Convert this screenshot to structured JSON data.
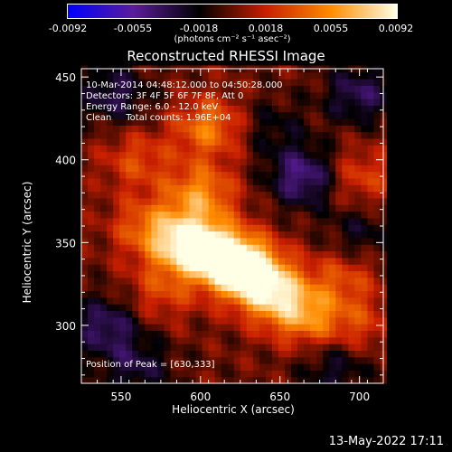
{
  "colorbar": {
    "tick_labels": [
      "-0.0092",
      "-0.0055",
      "-0.0018",
      "0.0018",
      "0.0055",
      "0.0092"
    ],
    "unit_label": "(photons cm⁻² s⁻¹ asec⁻²)",
    "min": -0.0092,
    "max": 0.0092
  },
  "info": {
    "time_range": "10-Mar-2014 04:48:12.000 to 04:50:28.000",
    "detectors": "Detectors: 3F 4F 5F 6F 7F 8F, Att 0",
    "energy": "Energy Range: 6.0 - 12.0 keV",
    "clean": "Clean     Total counts: 1.96E+04"
  },
  "peak_text": "Position of Peak = [630,333]",
  "footer_text": "13-May-2022 17:11",
  "chart_data": {
    "type": "heatmap",
    "title": "Reconstructed RHESSI Image",
    "xlabel": "Heliocentric X (arcsec)",
    "ylabel": "Heliocentric Y (arcsec)",
    "xlim": [
      525,
      715
    ],
    "ylim": [
      265,
      455
    ],
    "xticks": [
      550,
      600,
      650,
      700
    ],
    "yticks": [
      300,
      350,
      400,
      450
    ],
    "peak": [
      630,
      333
    ],
    "colormap": [
      "#0000ff",
      "#5a1c9a",
      "#000000",
      "#c81e00",
      "#ff8c00",
      "#ffffe6"
    ],
    "sources": [
      {
        "x": 630,
        "y": 333,
        "amp": 0.0092
      },
      {
        "x": 590,
        "y": 350,
        "amp": 0.0078
      },
      {
        "x": 612,
        "y": 343,
        "amp": 0.0072
      },
      {
        "x": 648,
        "y": 318,
        "amp": 0.006
      },
      {
        "x": 668,
        "y": 305,
        "amp": 0.0045
      },
      {
        "x": 600,
        "y": 380,
        "amp": 0.0052
      },
      {
        "x": 605,
        "y": 420,
        "amp": 0.0048
      },
      {
        "x": 560,
        "y": 400,
        "amp": 0.003
      },
      {
        "x": 565,
        "y": 360,
        "amp": 0.0035
      },
      {
        "x": 575,
        "y": 320,
        "amp": 0.0028
      },
      {
        "x": 700,
        "y": 390,
        "amp": 0.003
      },
      {
        "x": 690,
        "y": 330,
        "amp": 0.003
      },
      {
        "x": 700,
        "y": 300,
        "amp": 0.0025
      },
      {
        "x": 665,
        "y": 390,
        "amp": -0.005
      },
      {
        "x": 545,
        "y": 440,
        "amp": -0.0035
      },
      {
        "x": 540,
        "y": 300,
        "amp": -0.004
      },
      {
        "x": 700,
        "y": 440,
        "amp": -0.0038
      },
      {
        "x": 560,
        "y": 275,
        "amp": -0.003
      },
      {
        "x": 685,
        "y": 275,
        "amp": -0.0028
      },
      {
        "x": 700,
        "y": 355,
        "amp": -0.0025
      },
      {
        "x": 645,
        "y": 420,
        "amp": -0.002
      }
    ]
  }
}
